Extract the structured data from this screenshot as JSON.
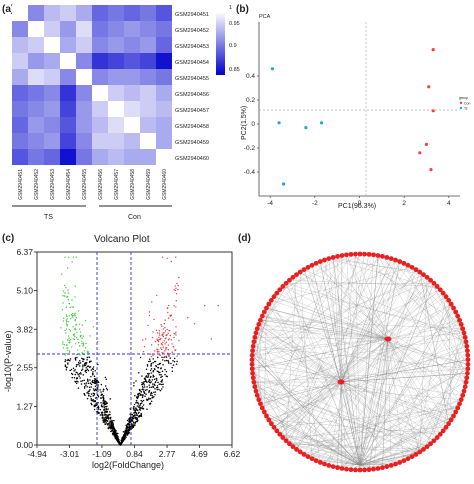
{
  "panels": {
    "a": "(a)",
    "b": "(b)",
    "c": "(c)",
    "d": "(d)"
  },
  "heatmap": {
    "samples": [
      "GSM2940451",
      "GSM2940452",
      "GSM2940453",
      "GSM2940454",
      "GSM2940455",
      "GSM2940456",
      "GSM2940457",
      "GSM2940458",
      "GSM2940459",
      "GSM2940460"
    ],
    "groups": [
      "TS",
      "Con"
    ],
    "colorbar_ticks": [
      "1",
      "0.95",
      "0.9",
      "0.85"
    ],
    "colors": {
      "low": "#0000cc",
      "high": "#ffffff"
    },
    "matrix": [
      [
        1.0,
        0.93,
        0.96,
        0.97,
        0.95,
        0.91,
        0.92,
        0.91,
        0.92,
        0.9
      ],
      [
        0.93,
        1.0,
        0.97,
        0.94,
        0.98,
        0.92,
        0.93,
        0.94,
        0.93,
        0.92
      ],
      [
        0.96,
        0.97,
        1.0,
        0.95,
        0.97,
        0.93,
        0.94,
        0.93,
        0.94,
        0.91
      ],
      [
        0.97,
        0.94,
        0.95,
        1.0,
        0.93,
        0.88,
        0.89,
        0.9,
        0.89,
        0.86
      ],
      [
        0.95,
        0.98,
        0.97,
        0.93,
        1.0,
        0.93,
        0.94,
        0.94,
        0.93,
        0.92
      ],
      [
        0.91,
        0.92,
        0.93,
        0.88,
        0.93,
        1.0,
        0.97,
        0.96,
        0.97,
        0.95
      ],
      [
        0.92,
        0.93,
        0.94,
        0.89,
        0.94,
        0.97,
        1.0,
        0.98,
        0.97,
        0.96
      ],
      [
        0.91,
        0.94,
        0.93,
        0.9,
        0.94,
        0.96,
        0.98,
        1.0,
        0.96,
        0.95
      ],
      [
        0.92,
        0.93,
        0.94,
        0.89,
        0.93,
        0.97,
        0.97,
        0.96,
        1.0,
        0.95
      ],
      [
        0.9,
        0.92,
        0.91,
        0.86,
        0.92,
        0.95,
        0.96,
        0.95,
        0.95,
        1.0
      ]
    ]
  },
  "chart_data": [
    {
      "type": "heatmap",
      "rows": [
        "GSM2940451",
        "GSM2940452",
        "GSM2940453",
        "GSM2940454",
        "GSM2940455",
        "GSM2940456",
        "GSM2940457",
        "GSM2940458",
        "GSM2940459",
        "GSM2940460"
      ]
    },
    {
      "type": "scatter",
      "title": "PCA",
      "xlabel": "PC1(96.3%)",
      "ylabel": "PC2(1.5%)",
      "xlim": [
        -4.5,
        4.5
      ],
      "ylim": [
        -0.6,
        0.85
      ],
      "xticks": [
        "-4",
        "-2",
        "0",
        "2",
        "4"
      ],
      "yticks": [
        "0.4",
        "0.2",
        "0",
        "-0.2",
        "-0.4"
      ],
      "legend_title": "group",
      "series": [
        {
          "name": "Con",
          "color": "#ee4444",
          "x": [
            3.3,
            3.1,
            3.0,
            2.7,
            3.2,
            3.3
          ],
          "y": [
            0.62,
            0.31,
            -0.17,
            -0.24,
            -0.38,
            0.11
          ]
        },
        {
          "name": "Ts",
          "color": "#22a8c8",
          "x": [
            -3.9,
            -3.6,
            -2.4,
            -1.7,
            -3.4
          ],
          "y": [
            0.46,
            0.01,
            -0.03,
            0.01,
            -0.5
          ]
        }
      ]
    },
    {
      "type": "scatter",
      "title": "Volcano Plot",
      "xlabel": "log2(FoldChange)",
      "ylabel": "-log10(P-value)",
      "xlim": [
        -4.94,
        6.62
      ],
      "ylim": [
        0,
        6.37
      ],
      "xticks": [
        "-4.94",
        "-3.01",
        "-1.09",
        "0.84",
        "2.77",
        "4.69",
        "6.62"
      ],
      "yticks": [
        "6.37",
        "5.10",
        "3.82",
        "2.55",
        "1.27",
        "0.00"
      ],
      "thresholds": {
        "x": [
          -1.09,
          0.84
        ],
        "y": 2.9
      },
      "colors": {
        "up": "#e84040",
        "down": "#44cc44",
        "ns": "#000000",
        "threshold": "#3333cc"
      }
    },
    {
      "type": "network",
      "colors": {
        "node": "#e82020",
        "edge": "#888888"
      }
    }
  ]
}
